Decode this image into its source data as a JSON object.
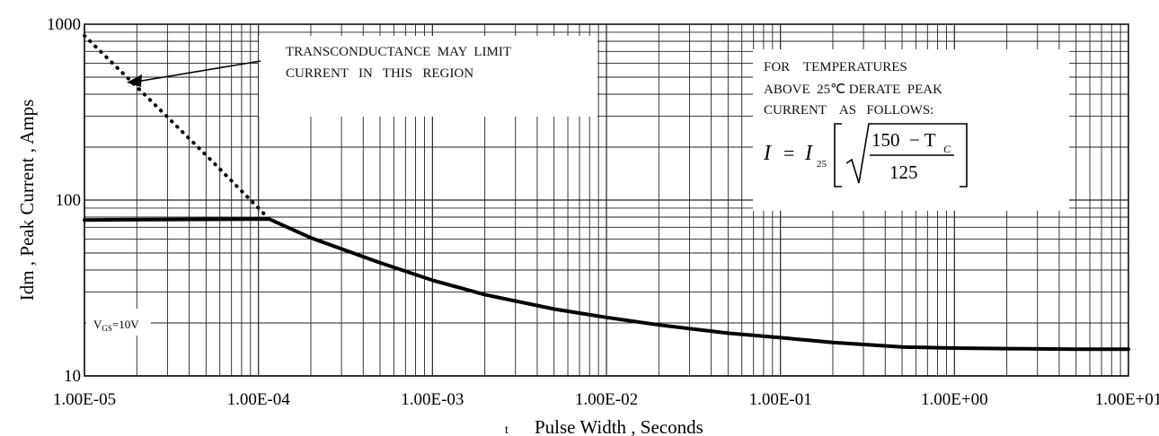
{
  "chart_data": {
    "type": "line",
    "title": "",
    "xlabel": "Pulse Width , Seconds",
    "xlabel_prefix": "t",
    "ylabel": "Idm , Peak Current , Amps",
    "xscale": "log",
    "yscale": "log",
    "xlim": [
      1e-05,
      10
    ],
    "ylim": [
      10,
      1000
    ],
    "grid": true,
    "x_tick_labels": [
      "1.00E-05",
      "1.00E-04",
      "1.00E-03",
      "1.00E-02",
      "1.00E-01",
      "1.00E+00",
      "1.00E+01"
    ],
    "y_tick_labels": [
      "10",
      "100",
      "1000"
    ],
    "series": [
      {
        "style": "solid",
        "x": [
          1e-05,
          0.000115,
          0.0002,
          0.0005,
          0.001,
          0.002,
          0.005,
          0.01,
          0.02,
          0.05,
          0.1,
          0.2,
          0.5,
          1,
          2,
          5,
          10
        ],
        "y": [
          77,
          78,
          61,
          44,
          35,
          29,
          24,
          21.5,
          19.5,
          17.5,
          16.5,
          15.5,
          14.6,
          14.4,
          14.3,
          14.2,
          14.2
        ]
      },
      {
        "style": "dotted",
        "x": [
          1e-05,
          2e-05,
          5e-05,
          0.0001,
          0.000115
        ],
        "y": [
          860,
          440,
          180,
          90,
          78
        ]
      }
    ],
    "annotations": {
      "transconductance": [
        "TRANSCONDUCTANCE  MAY  LIMIT",
        "CURRENT   IN   THIS   REGION"
      ],
      "vgs_label": "V",
      "vgs_sub": "GS",
      "vgs_value": "=10V",
      "derate": [
        "FOR    TEMPERATURES",
        "ABOVE  25℃ DERATE  PEAK",
        "CURRENT    AS   FOLLOWS:"
      ],
      "formula": {
        "lhs": "I",
        "eq": "=",
        "i25": "I",
        "i25_sub": "25",
        "num": "150  − T",
        "num_sub": "C",
        "den": "125"
      }
    }
  }
}
